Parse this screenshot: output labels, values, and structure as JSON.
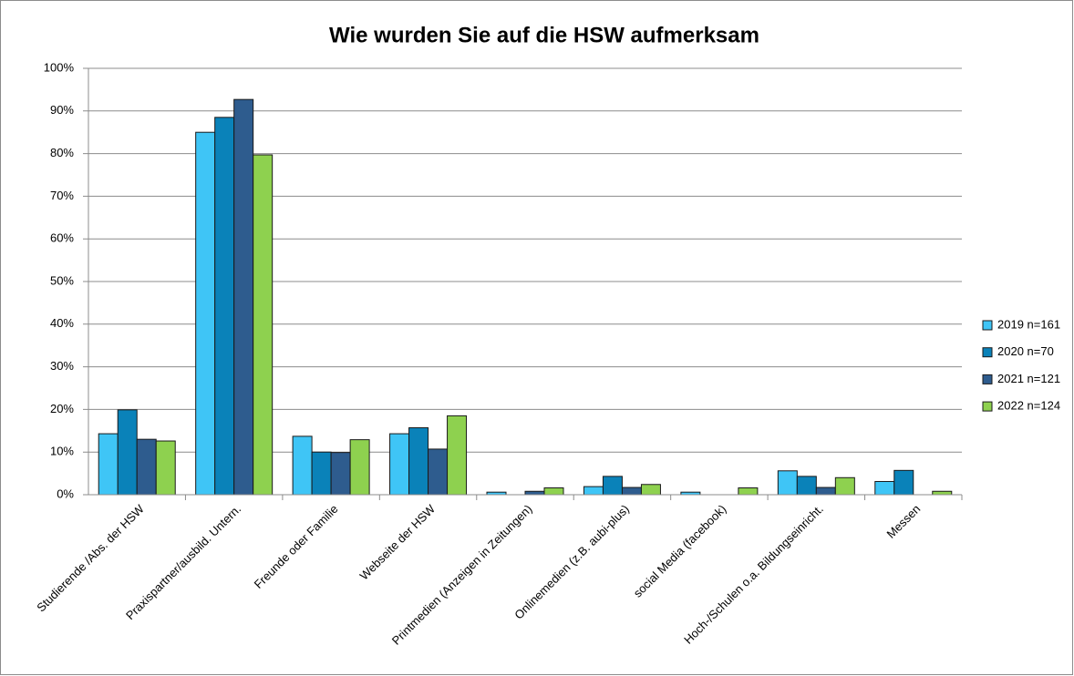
{
  "chart_data": {
    "type": "bar",
    "title": "Wie wurden Sie auf die HSW aufmerksam",
    "categories": [
      "Studierende /Abs. der HSW",
      "Praxispartner/ausbild. Untern.",
      "Freunde oder Familie",
      "Webseite der HSW",
      "Printmedien (Anzeigen in Zeitungen)",
      "Onlinemedien (z.B. aubi-plus)",
      "social Media (facebook)",
      "Hoch-/Schulen o.a. Bildungseinricht.",
      "Messen"
    ],
    "series": [
      {
        "name": "2019 n=161",
        "color": "#3fc5f6",
        "values": [
          14.3,
          85.0,
          13.7,
          14.3,
          0.6,
          1.9,
          0.6,
          5.6,
          3.1
        ]
      },
      {
        "name": "2020 n=70",
        "color": "#0a82b9",
        "values": [
          19.9,
          88.5,
          10.0,
          15.7,
          0,
          4.3,
          0,
          4.3,
          5.7
        ]
      },
      {
        "name": "2021 n=121",
        "color": "#2e5c8e",
        "values": [
          13.0,
          92.7,
          9.9,
          10.7,
          0.8,
          1.7,
          0,
          1.7,
          0
        ]
      },
      {
        "name": "2022 n=124",
        "color": "#8ed14f",
        "values": [
          12.6,
          79.7,
          12.9,
          18.5,
          1.6,
          2.4,
          1.6,
          4.0,
          0.8
        ]
      }
    ],
    "ylim": [
      0,
      100
    ],
    "yticks": [
      {
        "value": 0,
        "label": "0%"
      },
      {
        "value": 10,
        "label": "10%"
      },
      {
        "value": 20,
        "label": "20%"
      },
      {
        "value": 30,
        "label": "30%"
      },
      {
        "value": 40,
        "label": "40%"
      },
      {
        "value": 50,
        "label": "50%"
      },
      {
        "value": 60,
        "label": "60%"
      },
      {
        "value": 70,
        "label": "70%"
      },
      {
        "value": 80,
        "label": "80%"
      },
      {
        "value": 90,
        "label": "90%"
      },
      {
        "value": 100,
        "label": "100%"
      }
    ],
    "grid": true,
    "legend": "right"
  }
}
